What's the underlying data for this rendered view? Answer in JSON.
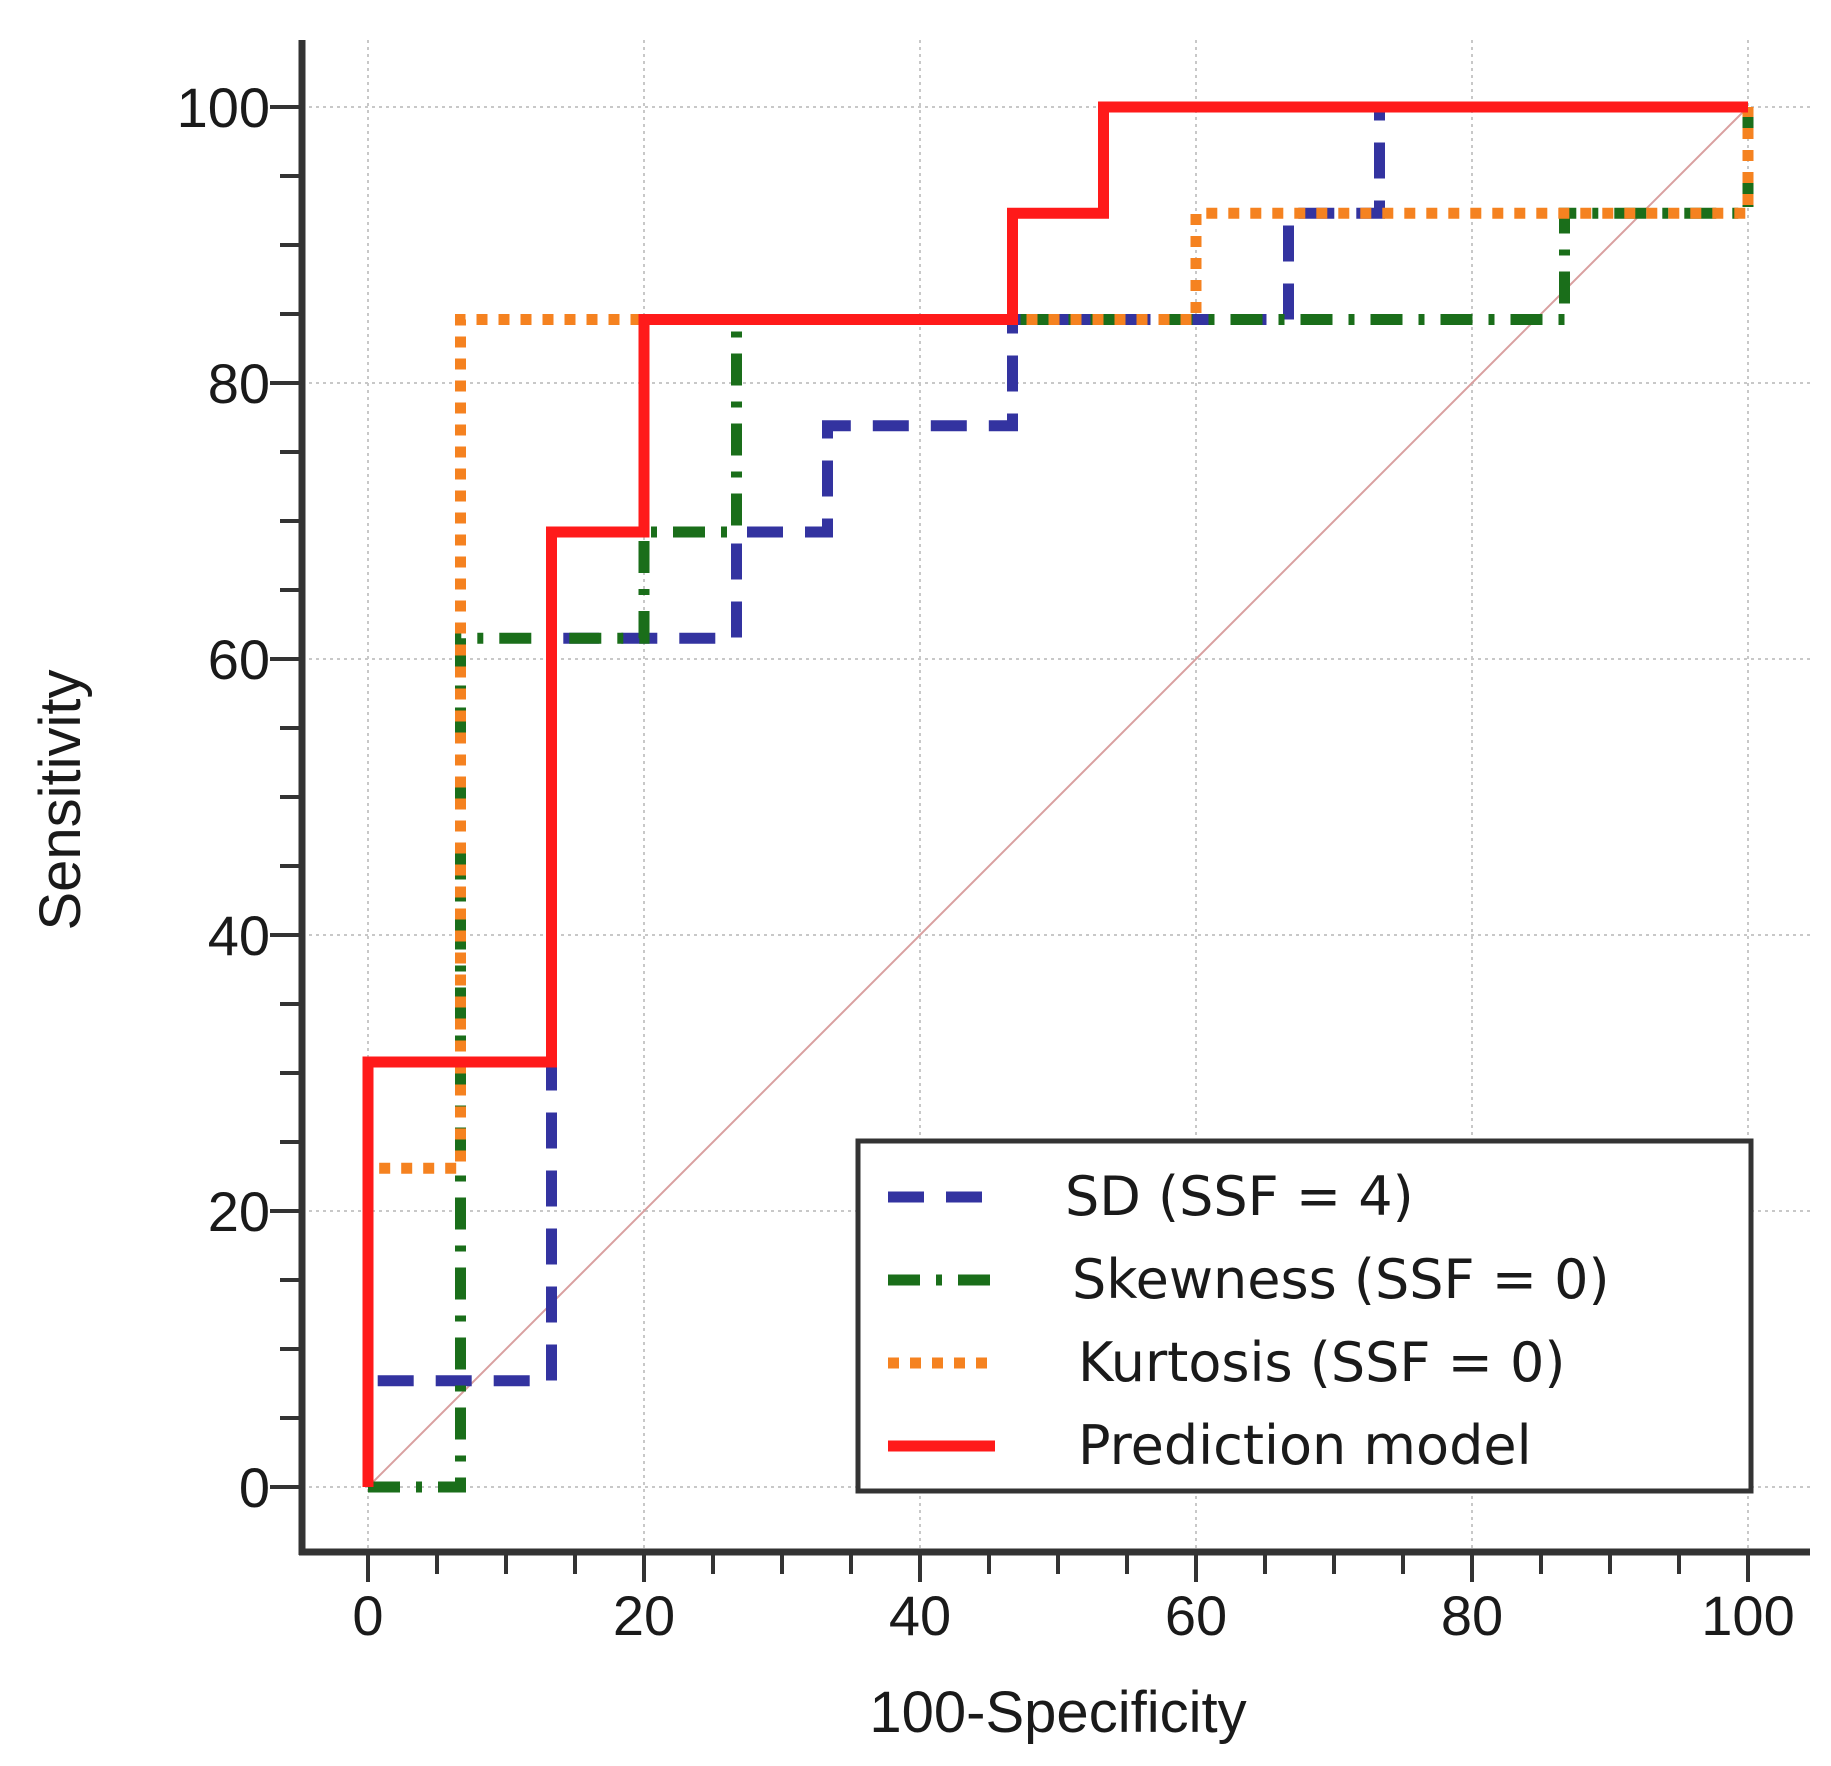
{
  "chart_data": {
    "type": "line",
    "xlabel": "100-Specificity",
    "ylabel": "Sensitivity",
    "xlim": [
      0,
      100
    ],
    "ylim": [
      0,
      100
    ],
    "xticks": [
      0,
      20,
      40,
      60,
      80,
      100
    ],
    "yticks": [
      0,
      20,
      40,
      60,
      80,
      100
    ],
    "grid": true,
    "legend_position": "bottom-right",
    "reference_line": {
      "from": [
        0,
        0
      ],
      "to": [
        100,
        100
      ],
      "color": "#d9a0a0"
    },
    "series": [
      {
        "name": "SD (SSF = 4)",
        "color": "#3333a0",
        "style": "dashed",
        "points": [
          [
            0,
            0
          ],
          [
            0,
            7.7
          ],
          [
            13.3,
            7.7
          ],
          [
            13.3,
            30.8
          ],
          [
            13.3,
            61.5
          ],
          [
            26.7,
            61.5
          ],
          [
            26.7,
            69.2
          ],
          [
            33.3,
            69.2
          ],
          [
            33.3,
            76.9
          ],
          [
            46.7,
            76.9
          ],
          [
            46.7,
            84.6
          ],
          [
            66.7,
            84.6
          ],
          [
            66.7,
            92.3
          ],
          [
            73.3,
            92.3
          ],
          [
            73.3,
            100
          ],
          [
            100,
            100
          ]
        ]
      },
      {
        "name": "Skewness (SSF = 0)",
        "color": "#1a6e1a",
        "style": "dashdot",
        "points": [
          [
            0,
            0
          ],
          [
            6.7,
            0
          ],
          [
            6.7,
            61.5
          ],
          [
            13.3,
            61.5
          ],
          [
            20,
            61.5
          ],
          [
            20,
            69.2
          ],
          [
            26.7,
            69.2
          ],
          [
            26.7,
            84.6
          ],
          [
            86.7,
            84.6
          ],
          [
            86.7,
            92.3
          ],
          [
            100,
            92.3
          ],
          [
            100,
            100
          ]
        ]
      },
      {
        "name": "Kurtosis (SSF = 0)",
        "color": "#f58220",
        "style": "dotted",
        "points": [
          [
            0,
            0
          ],
          [
            0,
            23.1
          ],
          [
            6.7,
            23.1
          ],
          [
            6.7,
            84.6
          ],
          [
            60,
            84.6
          ],
          [
            60,
            92.3
          ],
          [
            100,
            92.3
          ],
          [
            100,
            100
          ]
        ]
      },
      {
        "name": "Prediction model",
        "color": "#ff1a1a",
        "style": "solid",
        "points": [
          [
            0,
            0
          ],
          [
            0,
            30.8
          ],
          [
            13.3,
            30.8
          ],
          [
            13.3,
            69.2
          ],
          [
            20,
            69.2
          ],
          [
            20,
            84.6
          ],
          [
            46.7,
            84.6
          ],
          [
            46.7,
            92.3
          ],
          [
            53.3,
            92.3
          ],
          [
            53.3,
            100
          ],
          [
            100,
            100
          ]
        ]
      }
    ]
  }
}
